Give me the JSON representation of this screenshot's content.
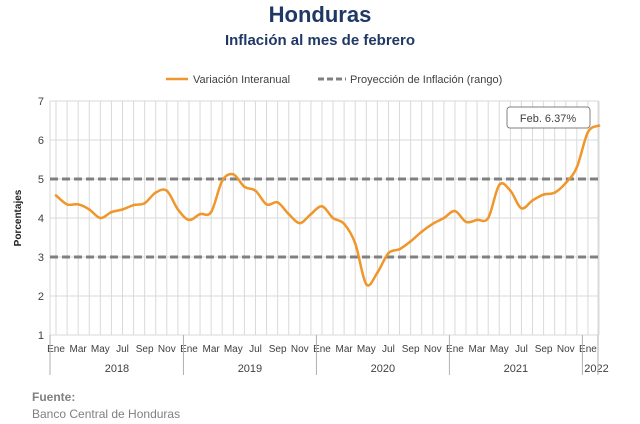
{
  "header": {
    "title": "Honduras",
    "subtitle": "Inflación al mes de febrero"
  },
  "source": {
    "label": "Fuente:",
    "text": "Banco Central de Honduras"
  },
  "chart_data": {
    "type": "line",
    "ylabel": "Porcentajes",
    "ylim": [
      1,
      7
    ],
    "yticks": [
      1,
      2,
      3,
      4,
      5,
      6,
      7
    ],
    "grid": true,
    "legend_position": "top-center",
    "month_tick_labels": [
      "Ene",
      "Mar",
      "May",
      "Jul",
      "Sep",
      "Nov",
      "Ene",
      "Mar",
      "May",
      "Jul",
      "Sep",
      "Nov",
      "Ene",
      "Mar",
      "May",
      "Jul",
      "Sep",
      "Nov",
      "Ene",
      "Mar",
      "May",
      "Jul",
      "Sep",
      "Nov",
      "Ene"
    ],
    "year_labels": [
      "2018",
      "2019",
      "2020",
      "2021",
      "2022"
    ],
    "callout": "Feb. 6.37%",
    "colors": {
      "series": "#f0962a",
      "projection": "#808080",
      "grid": "#d9d9d9"
    },
    "series": [
      {
        "name": "Variación Interanual",
        "x": [
          "2018-01",
          "2018-02",
          "2018-03",
          "2018-04",
          "2018-05",
          "2018-06",
          "2018-07",
          "2018-08",
          "2018-09",
          "2018-10",
          "2018-11",
          "2018-12",
          "2019-01",
          "2019-02",
          "2019-03",
          "2019-04",
          "2019-05",
          "2019-06",
          "2019-07",
          "2019-08",
          "2019-09",
          "2019-10",
          "2019-11",
          "2019-12",
          "2020-01",
          "2020-02",
          "2020-03",
          "2020-04",
          "2020-05",
          "2020-06",
          "2020-07",
          "2020-08",
          "2020-09",
          "2020-10",
          "2020-11",
          "2020-12",
          "2021-01",
          "2021-02",
          "2021-03",
          "2021-04",
          "2021-05",
          "2021-06",
          "2021-07",
          "2021-08",
          "2021-09",
          "2021-10",
          "2021-11",
          "2021-12",
          "2022-01",
          "2022-02"
        ],
        "values": [
          4.58,
          4.35,
          4.35,
          4.22,
          4.0,
          4.15,
          4.22,
          4.33,
          4.38,
          4.65,
          4.7,
          4.22,
          3.95,
          4.1,
          4.15,
          4.95,
          5.12,
          4.8,
          4.7,
          4.35,
          4.4,
          4.1,
          3.87,
          4.1,
          4.3,
          4.0,
          3.85,
          3.35,
          2.3,
          2.6,
          3.1,
          3.2,
          3.4,
          3.65,
          3.85,
          4.0,
          4.18,
          3.9,
          3.95,
          4.0,
          4.85,
          4.7,
          4.25,
          4.45,
          4.6,
          4.65,
          4.9,
          5.3,
          6.2,
          6.37
        ]
      },
      {
        "name": "Proyección de Inflación (rango)",
        "lower": 3,
        "upper": 5
      }
    ]
  }
}
